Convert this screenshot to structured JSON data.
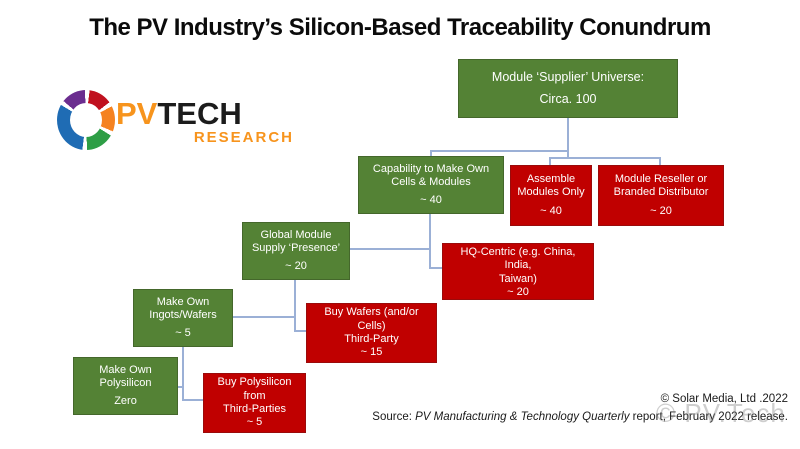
{
  "title": "The PV Industry’s Silicon-Based Traceability Conundrum",
  "logo": {
    "pv": "PV",
    "tech": "TECH",
    "research": "RESEARCH"
  },
  "colors": {
    "box_green": "#548235",
    "box_red": "#C00000",
    "connector_blue": "#9BB0D6",
    "logo_orange": "#F7941D",
    "logo_dark": "#1C1C1C"
  },
  "boxes": {
    "universe": {
      "label": "Module ‘Supplier’ Universe:",
      "value": "Circa. 100"
    },
    "capability": {
      "label": "Capability to Make Own\nCells & Modules",
      "value": "~ 40"
    },
    "assemble": {
      "label": "Assemble\nModules Only",
      "value": "~ 40"
    },
    "reseller": {
      "label": "Module Reseller or\nBranded Distributor",
      "value": "~ 20"
    },
    "global_supply": {
      "label": "Global Module\nSupply ‘Presence’",
      "value": "~ 20"
    },
    "hq_centric": {
      "label": "HQ-Centric (e.g. China, India,\nTaiwan)",
      "value": "~ 20"
    },
    "ingots": {
      "label": "Make Own\nIngots/Wafers",
      "value": "~ 5"
    },
    "buy_wafers": {
      "label": "Buy Wafers (and/or Cells)\nThird-Party",
      "value": "~ 15"
    },
    "polysilicon": {
      "label": "Make Own\nPolysilicon",
      "value": "Zero"
    },
    "buy_poly": {
      "label": "Buy Polysilicon from\nThird-Parties",
      "value": "~ 5"
    }
  },
  "footer": {
    "copyright": "© Solar Media, Ltd .2022",
    "source_prefix": "Source: ",
    "source_title": "PV Manufacturing & Technology Quarterly",
    "source_suffix": " report, February 2022 release.",
    "watermark": "© PV.Tech"
  }
}
